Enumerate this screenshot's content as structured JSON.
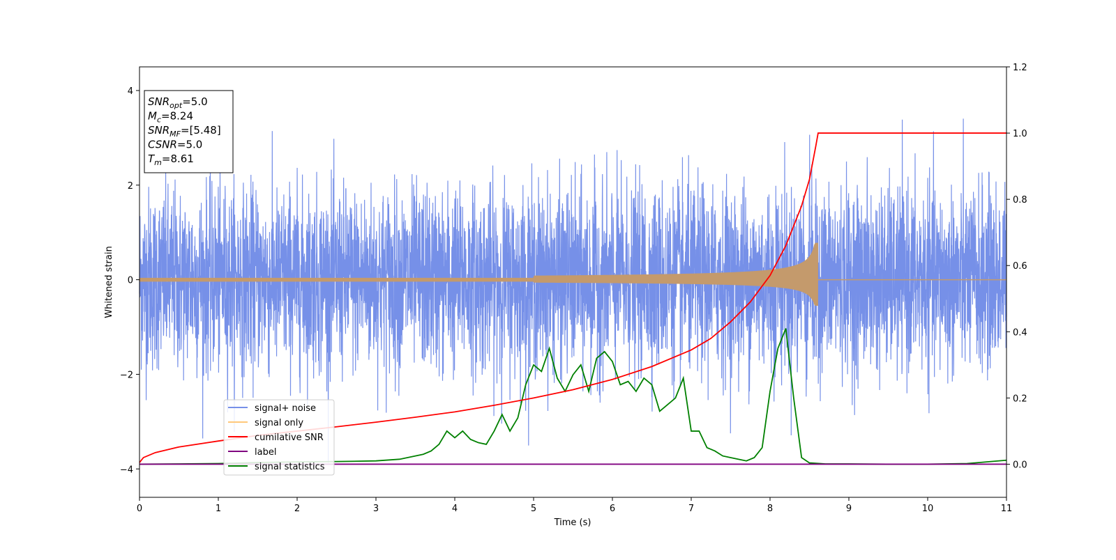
{
  "chart_data": {
    "type": "line",
    "xlabel": "Time (s)",
    "ylabel": "Whitened strain",
    "xlim": [
      0,
      11
    ],
    "ylim": [
      -4.6,
      4.5
    ],
    "ylim_right": [
      -0.1,
      1.2
    ],
    "x_ticks": [
      "0",
      "1",
      "2",
      "3",
      "4",
      "5",
      "6",
      "7",
      "8",
      "9",
      "10",
      "11"
    ],
    "y_ticks_left": [
      {
        "value": 4,
        "label": "4"
      },
      {
        "value": 2,
        "label": "2"
      },
      {
        "value": 0,
        "label": "0"
      },
      {
        "value": -2,
        "label": "−2"
      },
      {
        "value": -4,
        "label": "−4"
      }
    ],
    "y_ticks_right": [
      {
        "value": 1.2,
        "label": "1.2"
      },
      {
        "value": 1.0,
        "label": "1.0"
      },
      {
        "value": 0.8,
        "label": "0.8"
      },
      {
        "value": 0.6,
        "label": "0.6"
      },
      {
        "value": 0.4,
        "label": "0.4"
      },
      {
        "value": 0.2,
        "label": "0.2"
      },
      {
        "value": 0.0,
        "label": "0.0"
      }
    ],
    "grid": false,
    "annotation": {
      "lines": [
        {
          "base": "SNR",
          "sub": "opt",
          "text": "=5.0"
        },
        {
          "base": "M",
          "sub": "c",
          "text": "=8.24"
        },
        {
          "base": "SNR",
          "sub": "MF",
          "text": "=[5.48]"
        },
        {
          "base": "CSNR",
          "sub": "",
          "text": "=5.0"
        },
        {
          "base": "T",
          "sub": "m",
          "text": "=8.61"
        }
      ]
    },
    "legend": {
      "position": "lower-left",
      "entries": [
        {
          "name": "signal+ noise",
          "color": "#7690e8"
        },
        {
          "name": "signal only",
          "color": "#ffc87a"
        },
        {
          "name": "cumilative SNR",
          "color": "#ff0000"
        },
        {
          "name": "label",
          "color": "#800080"
        },
        {
          "name": "signal statistics",
          "color": "#008000"
        }
      ]
    },
    "series": [
      {
        "name": "signal+ noise",
        "axis": "left",
        "description_free": true,
        "noise_std": 0.95,
        "y_range": [
          -4.15,
          3.6
        ]
      },
      {
        "name": "signal only",
        "axis": "left",
        "chirp": {
          "t_merge": 8.61,
          "peak_amplitude_pos": 0.78,
          "peak_amplitude_neg": -0.55,
          "amplitude_at_5s": 0.04,
          "amplitude_at_8s": 0.23
        }
      },
      {
        "name": "cumilative SNR",
        "axis": "right",
        "x": [
          0,
          0.05,
          0.2,
          0.5,
          1,
          1.5,
          2,
          2.5,
          3,
          3.5,
          4,
          4.5,
          5,
          5.5,
          6,
          6.5,
          7,
          7.25,
          7.5,
          7.75,
          8,
          8.2,
          8.4,
          8.5,
          8.58,
          8.61,
          11
        ],
        "values": [
          0.005,
          0.02,
          0.035,
          0.052,
          0.07,
          0.087,
          0.1,
          0.113,
          0.127,
          0.142,
          0.158,
          0.178,
          0.2,
          0.225,
          0.256,
          0.295,
          0.345,
          0.38,
          0.43,
          0.49,
          0.57,
          0.66,
          0.78,
          0.86,
          0.96,
          1.0,
          1.0
        ]
      },
      {
        "name": "label",
        "axis": "right",
        "x": [
          0,
          11
        ],
        "values": [
          0.0,
          0.0
        ]
      },
      {
        "name": "signal statistics",
        "axis": "right",
        "x": [
          0,
          0.5,
          1,
          1.5,
          2,
          2.5,
          3,
          3.3,
          3.5,
          3.6,
          3.7,
          3.8,
          3.9,
          4.0,
          4.1,
          4.2,
          4.3,
          4.4,
          4.5,
          4.6,
          4.7,
          4.8,
          4.9,
          5.0,
          5.1,
          5.2,
          5.3,
          5.4,
          5.5,
          5.6,
          5.7,
          5.8,
          5.9,
          6.0,
          6.1,
          6.2,
          6.3,
          6.4,
          6.5,
          6.6,
          6.7,
          6.8,
          6.9,
          7.0,
          7.1,
          7.2,
          7.3,
          7.4,
          7.5,
          7.6,
          7.7,
          7.8,
          7.9,
          8.0,
          8.1,
          8.2,
          8.3,
          8.4,
          8.5,
          8.7,
          9,
          9.5,
          10,
          10.5,
          11
        ],
        "values": [
          0.0,
          0.001,
          0.002,
          0.005,
          0.007,
          0.008,
          0.01,
          0.015,
          0.025,
          0.03,
          0.04,
          0.06,
          0.1,
          0.08,
          0.1,
          0.075,
          0.065,
          0.06,
          0.1,
          0.15,
          0.1,
          0.14,
          0.24,
          0.3,
          0.28,
          0.35,
          0.26,
          0.22,
          0.27,
          0.3,
          0.22,
          0.32,
          0.34,
          0.31,
          0.24,
          0.25,
          0.22,
          0.26,
          0.24,
          0.16,
          0.18,
          0.2,
          0.26,
          0.1,
          0.1,
          0.05,
          0.04,
          0.025,
          0.02,
          0.015,
          0.01,
          0.02,
          0.05,
          0.22,
          0.35,
          0.41,
          0.2,
          0.02,
          0.004,
          0.001,
          0.001,
          0.0,
          0.0,
          0.002,
          0.012
        ]
      }
    ]
  }
}
